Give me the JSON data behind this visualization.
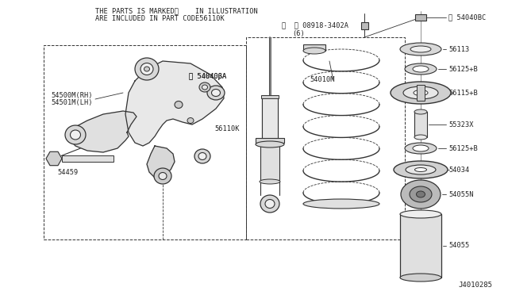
{
  "bg_color": "#ffffff",
  "title_line1": "THE PARTS IS MARKED※    IN ILLUSTRATION",
  "title_line2": "ARE INCLUDED IN PART CODE56110K",
  "diagram_code": "J4010285",
  "lc": "#333333",
  "tc": "#222222",
  "fs": 6.5
}
